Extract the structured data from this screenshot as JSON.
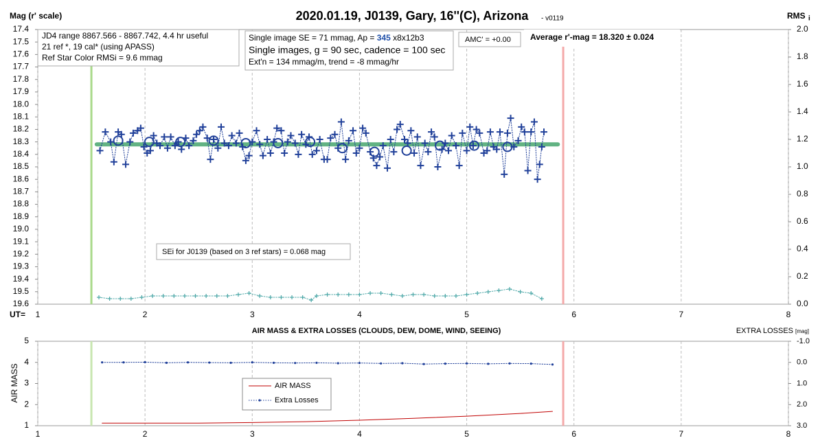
{
  "chart_data": [
    {
      "type": "scatter",
      "title": "2020.01.19, J0139, Gary, 16''(C), Arizona",
      "title_suffix": "- v0119",
      "ylabel": "Mag (r' scale)",
      "y2label": "RMS",
      "y2label_sub": "i",
      "xlabel": "UT=",
      "xlim": [
        1,
        8
      ],
      "xticks": [
        1,
        2,
        3,
        4,
        5,
        6,
        7,
        8
      ],
      "ylim": [
        19.6,
        17.4
      ],
      "yticks": [
        17.4,
        17.5,
        17.6,
        17.7,
        17.8,
        17.9,
        {
          "value": 18,
          "label": "18.0"
        },
        18.1,
        18.2,
        18.3,
        18.4,
        18.5,
        18.6,
        18.7,
        18.8,
        18.9,
        {
          "value": 19,
          "label": "19.0"
        },
        19.1,
        19.2,
        19.3,
        19.4,
        19.5,
        19.6
      ],
      "y2lim": [
        0,
        2
      ],
      "y2ticks": [
        {
          "value": 0,
          "label": "0.0"
        },
        0.2,
        0.4,
        0.6,
        0.8,
        {
          "value": 1,
          "label": "1.0"
        },
        1.2,
        1.4,
        1.6,
        1.8,
        {
          "value": 2,
          "label": "2.0"
        }
      ],
      "grid": true,
      "vlines": [
        {
          "x": 1.5,
          "color": "#a9d98a"
        },
        {
          "x": 5.9,
          "color": "#f4a9a9"
        }
      ],
      "series": [
        {
          "marker": "none",
          "line": "solid",
          "width": 6,
          "opacity": 0.75,
          "color": "#2e9a5a",
          "x": [
            1.55,
            5.85
          ],
          "values": [
            18.32,
            18.32
          ]
        },
        {
          "marker": "cross",
          "line": "dotted",
          "color": "#1f3f99",
          "x": [
            1.58,
            1.63,
            1.68,
            1.71,
            1.75,
            1.78,
            1.82,
            1.86,
            1.89,
            1.93,
            1.96,
            1.99,
            2.02,
            2.05,
            2.08,
            2.11,
            2.14,
            2.18,
            2.21,
            2.24,
            2.28,
            2.31,
            2.34,
            2.38,
            2.41,
            2.45,
            2.48,
            2.51,
            2.54,
            2.58,
            2.61,
            2.64,
            2.68,
            2.71,
            2.74,
            2.78,
            2.81,
            2.85,
            2.88,
            2.91,
            2.94,
            2.97,
            3.0,
            3.04,
            3.07,
            3.1,
            3.14,
            3.17,
            3.2,
            3.23,
            3.27,
            3.3,
            3.33,
            3.36,
            3.4,
            3.43,
            3.46,
            3.5,
            3.53,
            3.56,
            3.6,
            3.63,
            3.67,
            3.7,
            3.73,
            3.77,
            3.8,
            3.83,
            3.87,
            3.9,
            3.94,
            3.97,
            4.0,
            4.03,
            4.06,
            4.1,
            4.13,
            4.16,
            4.19,
            4.22,
            4.26,
            4.29,
            4.32,
            4.35,
            4.38,
            4.42,
            4.45,
            4.48,
            4.51,
            4.54,
            4.57,
            4.61,
            4.64,
            4.67,
            4.7,
            4.73,
            4.77,
            4.8,
            4.83,
            4.86,
            4.9,
            4.93,
            4.96,
            5.0,
            5.03,
            5.06,
            5.09,
            5.12,
            5.16,
            5.19,
            5.22,
            5.25,
            5.28,
            5.31,
            5.35,
            5.38,
            5.41,
            5.44,
            5.48,
            5.51,
            5.54,
            5.57,
            5.6,
            5.63,
            5.66,
            5.68,
            5.7,
            5.72
          ],
          "values": [
            18.37,
            18.22,
            18.3,
            18.46,
            18.22,
            18.24,
            18.48,
            18.3,
            18.23,
            18.21,
            18.19,
            18.34,
            18.39,
            18.37,
            18.25,
            18.31,
            18.33,
            18.26,
            18.35,
            18.26,
            18.33,
            18.3,
            18.36,
            18.27,
            18.33,
            18.29,
            18.24,
            18.21,
            18.18,
            18.27,
            18.44,
            18.28,
            18.35,
            18.18,
            18.31,
            18.33,
            18.25,
            18.31,
            18.23,
            18.34,
            18.45,
            18.41,
            18.3,
            18.21,
            18.32,
            18.41,
            18.28,
            18.39,
            18.3,
            18.19,
            18.21,
            18.39,
            18.3,
            18.25,
            18.31,
            18.4,
            18.24,
            18.32,
            18.26,
            18.4,
            18.37,
            18.28,
            18.44,
            18.44,
            18.27,
            18.24,
            18.35,
            18.14,
            18.44,
            18.29,
            18.21,
            18.39,
            18.35,
            18.19,
            18.23,
            18.38,
            18.43,
            18.49,
            18.42,
            18.33,
            18.51,
            18.28,
            18.38,
            18.2,
            18.16,
            18.28,
            18.31,
            18.21,
            18.39,
            18.26,
            18.49,
            18.31,
            18.38,
            18.22,
            18.26,
            18.5,
            18.36,
            18.31,
            18.37,
            18.25,
            18.33,
            18.49,
            18.23,
            18.37,
            18.18,
            18.33,
            18.2,
            18.23,
            18.39,
            18.37,
            18.22,
            18.34,
            18.36,
            18.22,
            18.56,
            18.23,
            18.11,
            18.34,
            18.29,
            18.18,
            18.22,
            18.53,
            18.22,
            18.14,
            18.6,
            18.48,
            18.34,
            18.22
          ]
        },
        {
          "marker": "circle",
          "line": "none",
          "color": "#1f3f99",
          "x": [
            1.75,
            2.04,
            2.33,
            2.64,
            2.94,
            3.24,
            3.54,
            3.84,
            4.14,
            4.44,
            4.75,
            5.07,
            5.38
          ],
          "values": [
            18.29,
            18.3,
            18.3,
            18.29,
            18.31,
            18.31,
            18.3,
            18.35,
            18.38,
            18.37,
            18.33,
            18.33,
            18.34
          ]
        },
        {
          "marker": "cross",
          "line": "dotted",
          "color": "#4aa6a6",
          "axis": "y2",
          "size": 3,
          "x": [
            1.57,
            1.67,
            1.77,
            1.87,
            1.97,
            2.07,
            2.17,
            2.27,
            2.37,
            2.47,
            2.57,
            2.67,
            2.77,
            2.87,
            2.97,
            3.07,
            3.17,
            3.27,
            3.37,
            3.47,
            3.55,
            3.6,
            3.7,
            3.8,
            3.9,
            4.0,
            4.1,
            4.2,
            4.3,
            4.4,
            4.5,
            4.6,
            4.7,
            4.8,
            4.9,
            5.0,
            5.1,
            5.2,
            5.3,
            5.4,
            5.5,
            5.6,
            5.7
          ],
          "values": [
            0.05,
            0.04,
            0.04,
            0.04,
            0.05,
            0.06,
            0.06,
            0.06,
            0.06,
            0.06,
            0.06,
            0.06,
            0.06,
            0.07,
            0.08,
            0.06,
            0.05,
            0.05,
            0.05,
            0.05,
            0.03,
            0.06,
            0.07,
            0.07,
            0.07,
            0.07,
            0.08,
            0.08,
            0.07,
            0.06,
            0.07,
            0.07,
            0.06,
            0.06,
            0.06,
            0.07,
            0.08,
            0.09,
            0.1,
            0.11,
            0.09,
            0.08,
            0.04
          ]
        }
      ],
      "annotations": {
        "info": [
          "JD4 range 8867.566 - 8867.742, 4.4 hr useful",
          "21 ref *, 19 cal* (using APASS)",
          "Ref Star Color RMSi = 9.6 mmag"
        ],
        "settings": [
          [
            "Single image SE = 71 mmag, Ap = ",
            "345",
            " x8x12b3"
          ],
          "Single images, g = 90 sec, cadence = 100 sec",
          "Ext'n = 134 mmag/m, trend = -8 mmag/hr"
        ],
        "highlight_color": "#1f4fa8",
        "amc": "AMC' = +0.00",
        "average": "Average r'-mag =  18.320 ± 0.024",
        "sei": "SEi for J0139 (based on 3 ref stars) = 0.068 mag"
      }
    },
    {
      "type": "line",
      "title": "AIR MASS & EXTRA LOSSES (CLOUDS, DEW, DOME, WIND, SEEING)",
      "ylabel": "AIR MASS",
      "y2label": "EXTRA LOSSES",
      "y2label_sub": "[mag]",
      "xlim": [
        1,
        8
      ],
      "xticks": [
        1,
        2,
        3,
        4,
        5,
        6,
        7,
        8
      ],
      "ylim": [
        1,
        5
      ],
      "yticks": [
        1,
        2,
        3,
        4,
        5
      ],
      "y2lim": [
        3,
        -1
      ],
      "y2ticks": [
        {
          "value": -1,
          "label": "-1.0"
        },
        {
          "value": 0,
          "label": "0.0"
        },
        {
          "value": 1,
          "label": "1.0"
        },
        {
          "value": 2,
          "label": "2.0"
        },
        {
          "value": 3,
          "label": "3.0"
        }
      ],
      "grid": true,
      "vlines": [
        {
          "x": 1.5,
          "color": "#c8e6b0"
        },
        {
          "x": 5.9,
          "color": "#f4a9a9"
        }
      ],
      "series": [
        {
          "name": "AIR MASS",
          "marker": "none",
          "line": "solid",
          "color": "#c00000",
          "x": [
            1.6,
            2.5,
            3.0,
            3.5,
            4.0,
            4.5,
            5.0,
            5.5,
            5.8
          ],
          "values": [
            1.12,
            1.12,
            1.15,
            1.19,
            1.26,
            1.35,
            1.45,
            1.58,
            1.68
          ]
        },
        {
          "name": "Extra Losses",
          "marker": "dot",
          "line": "dotted",
          "color": "#1f3f99",
          "axis": "y2",
          "x": [
            1.6,
            1.8,
            2.0,
            2.2,
            2.4,
            2.6,
            2.8,
            3.0,
            3.2,
            3.4,
            3.6,
            3.8,
            4.0,
            4.2,
            4.4,
            4.6,
            4.8,
            5.0,
            5.2,
            5.4,
            5.6,
            5.8
          ],
          "values": [
            0.0,
            0.0,
            -0.01,
            0.02,
            0.0,
            0.01,
            0.02,
            0.0,
            0.02,
            0.03,
            0.02,
            0.04,
            0.03,
            0.05,
            0.04,
            0.08,
            0.06,
            0.05,
            0.07,
            0.05,
            0.06,
            0.1
          ]
        }
      ]
    }
  ]
}
